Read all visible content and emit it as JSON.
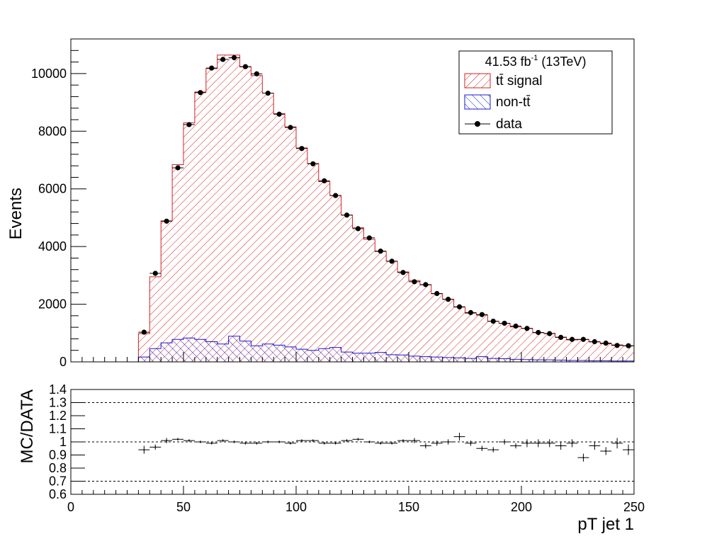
{
  "colors": {
    "signal": "#d42020",
    "background": "#1a1acc",
    "data": "#000000",
    "frame": "#000000",
    "reference_line": "#000000"
  },
  "legend": {
    "header_main": "41.53 fb",
    "header_sup": "-1",
    "header_rest": " (13TeV)",
    "signal_label": "tt̄ signal",
    "background_label": "non-tt̄",
    "data_label": "data",
    "position": "top-right"
  },
  "chart_data": [
    {
      "type": "bar",
      "panel": "main",
      "xlabel": "",
      "ylabel": "Events",
      "xlim": [
        0,
        250
      ],
      "ylim": [
        0,
        11200
      ],
      "y_ticks": [
        0,
        2000,
        4000,
        6000,
        8000,
        10000
      ],
      "y_tick_labels": [
        "0",
        "2000",
        "4000",
        "6000",
        "8000",
        "10000"
      ],
      "bin_width": 5,
      "bin_low_edges": [
        30,
        35,
        40,
        45,
        50,
        55,
        60,
        65,
        70,
        75,
        80,
        85,
        90,
        95,
        100,
        105,
        110,
        115,
        120,
        125,
        130,
        135,
        140,
        145,
        150,
        155,
        160,
        165,
        170,
        175,
        180,
        185,
        190,
        195,
        200,
        205,
        210,
        215,
        220,
        225,
        230,
        235,
        240,
        245
      ],
      "series": [
        {
          "name": "tt̄ signal",
          "style": "stacked-hatched",
          "values": [
            980,
            2950,
            4890,
            6840,
            8290,
            9360,
            10170,
            10640,
            10640,
            10230,
            9930,
            9320,
            8610,
            8150,
            7420,
            6880,
            6250,
            5770,
            5090,
            4650,
            4250,
            3830,
            3490,
            3120,
            2820,
            2670,
            2360,
            2170,
            1900,
            1690,
            1620,
            1410,
            1340,
            1210,
            1160,
            1010,
            990,
            860,
            760,
            770,
            690,
            630,
            590,
            560
          ]
        },
        {
          "name": "non-tt̄",
          "style": "hatched",
          "values": [
            170,
            460,
            660,
            780,
            830,
            780,
            700,
            620,
            890,
            720,
            560,
            620,
            580,
            520,
            440,
            400,
            460,
            500,
            340,
            300,
            300,
            330,
            250,
            240,
            200,
            180,
            170,
            150,
            140,
            120,
            180,
            120,
            110,
            90,
            80,
            70,
            70,
            60,
            50,
            50,
            40,
            40,
            30,
            30
          ]
        },
        {
          "name": "data",
          "style": "points",
          "values": [
            1030,
            3070,
            4880,
            6730,
            8230,
            9340,
            10190,
            10490,
            10550,
            10240,
            9990,
            9320,
            8590,
            8130,
            7400,
            6870,
            6280,
            5770,
            5090,
            4620,
            4300,
            3840,
            3490,
            3100,
            2780,
            2680,
            2370,
            2170,
            1910,
            1710,
            1640,
            1410,
            1340,
            1240,
            1160,
            1020,
            980,
            850,
            780,
            780,
            700,
            650,
            570,
            560
          ]
        }
      ]
    },
    {
      "type": "scatter",
      "panel": "ratio",
      "xlabel": "pT jet 1",
      "ylabel": "MC/DATA",
      "xlim": [
        0,
        250
      ],
      "ylim": [
        0.6,
        1.4
      ],
      "x_ticks": [
        0,
        50,
        100,
        150,
        200,
        250
      ],
      "x_tick_labels": [
        "0",
        "50",
        "100",
        "150",
        "200",
        "250"
      ],
      "y_ticks": [
        0.6,
        0.7,
        0.8,
        0.9,
        1.0,
        1.1,
        1.2,
        1.3,
        1.4
      ],
      "y_tick_labels": [
        "0.6",
        "0.7",
        "0.8",
        "0.9",
        "1",
        "1.1",
        "1.2",
        "1.3",
        "1.4"
      ],
      "reference_lines": [
        0.7,
        1.0,
        1.3
      ],
      "x": [
        32.5,
        37.5,
        42.5,
        47.5,
        52.5,
        57.5,
        62.5,
        67.5,
        72.5,
        77.5,
        82.5,
        87.5,
        92.5,
        97.5,
        102.5,
        107.5,
        112.5,
        117.5,
        122.5,
        127.5,
        132.5,
        137.5,
        142.5,
        147.5,
        152.5,
        157.5,
        162.5,
        167.5,
        172.5,
        177.5,
        182.5,
        187.5,
        192.5,
        197.5,
        202.5,
        207.5,
        212.5,
        217.5,
        222.5,
        227.5,
        232.5,
        237.5,
        242.5,
        247.5
      ],
      "values": [
        0.94,
        0.96,
        1.01,
        1.02,
        1.01,
        1.0,
        0.99,
        1.01,
        1.0,
        0.99,
        0.99,
        1.0,
        1.0,
        0.99,
        1.01,
        1.01,
        0.99,
        0.99,
        1.01,
        1.02,
        1.0,
        0.99,
        0.99,
        1.01,
        1.01,
        0.97,
        0.99,
        1.0,
        1.04,
        0.99,
        0.95,
        0.94,
        1.0,
        0.97,
        0.99,
        0.99,
        0.99,
        0.97,
        0.99,
        0.88,
        0.97,
        0.93,
        0.99,
        0.94
      ],
      "errors": [
        0.03,
        0.02,
        0.02,
        0.01,
        0.01,
        0.01,
        0.01,
        0.01,
        0.01,
        0.01,
        0.01,
        0.01,
        0.01,
        0.01,
        0.01,
        0.01,
        0.01,
        0.01,
        0.01,
        0.01,
        0.01,
        0.01,
        0.01,
        0.01,
        0.02,
        0.02,
        0.02,
        0.02,
        0.03,
        0.02,
        0.02,
        0.02,
        0.02,
        0.02,
        0.03,
        0.03,
        0.03,
        0.03,
        0.03,
        0.03,
        0.03,
        0.03,
        0.04,
        0.04
      ]
    }
  ]
}
